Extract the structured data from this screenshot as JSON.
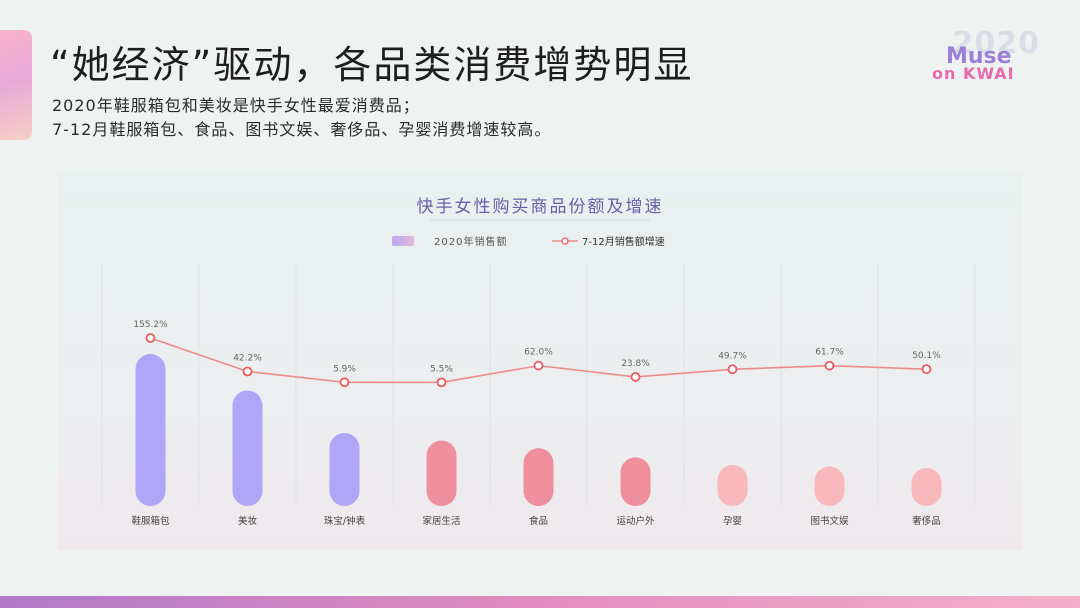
{
  "header": {
    "title": "“她经济”驱动，各品类消费增势明显",
    "subtitle_lines": [
      "2020年鞋服箱包和美妆是快手女性最爱消费品；",
      "7-12月鞋服箱包、食品、图书文娱、奢侈品、孕婴消费增速较高。"
    ]
  },
  "logo": {
    "year": "2020",
    "line1": "Muse",
    "line2": "on KWAI"
  },
  "chart_data": {
    "type": "bar",
    "title": "快手女性购买商品份额及增速",
    "legend": [
      "2020年销售额",
      "7-12月销售额增速"
    ],
    "legend_position": "top",
    "categories": [
      "鞋服箱包",
      "美妆",
      "珠宝/钟表",
      "家居生活",
      "食品",
      "运动户外",
      "孕婴",
      "图书文娱",
      "奢侈品"
    ],
    "series": [
      {
        "name": "2020年销售额",
        "type": "bar",
        "values": [
          100,
          76,
          48,
          43,
          38,
          32,
          27,
          26,
          25
        ],
        "colors": [
          "#b0a6f8",
          "#b0a6f8",
          "#b0a6f8",
          "#ef8f9e",
          "#ef8f9e",
          "#ef8f9e",
          "#f8b8bc",
          "#f8b8bc",
          "#f8b8bc"
        ]
      },
      {
        "name": "7-12月销售额增速",
        "type": "line",
        "values": [
          155.2,
          42.2,
          5.9,
          5.5,
          62.0,
          23.8,
          49.7,
          61.7,
          50.1
        ],
        "labels": [
          "155.2%",
          "42.2%",
          "5.9%",
          "5.5%",
          "62.0%",
          "23.8%",
          "49.7%",
          "61.7%",
          "50.1%"
        ],
        "color": "#ee8a8e"
      }
    ],
    "grid": "vertical-lines",
    "axis_visible": false
  }
}
